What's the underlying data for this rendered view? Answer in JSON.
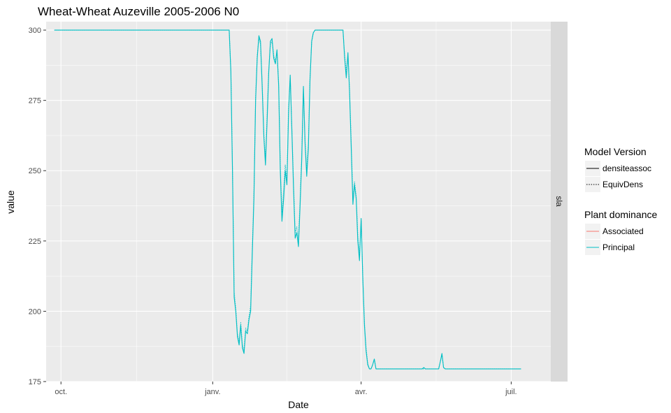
{
  "chart_data": {
    "type": "line",
    "title": "Wheat-Wheat Auzeville 2005-2006 N0",
    "xlabel": "Date",
    "ylabel": "value",
    "facet_label": "sla",
    "x_type": "date",
    "xlim": [
      "2005-09-22",
      "2006-07-25"
    ],
    "ylim": [
      175,
      303
    ],
    "x_ticks": [
      {
        "date": "2005-10-01",
        "label": "oct."
      },
      {
        "date": "2006-01-01",
        "label": "janv."
      },
      {
        "date": "2006-04-01",
        "label": "avr."
      },
      {
        "date": "2006-07-01",
        "label": "juil."
      }
    ],
    "y_ticks": [
      175,
      200,
      225,
      250,
      275,
      300
    ],
    "grid": true,
    "legend": {
      "placement": "right",
      "groups": [
        {
          "title": "Model Version",
          "items": [
            {
              "label": "densiteassoc",
              "linetype": "solid",
              "color": "#000000"
            },
            {
              "label": "EquivDens",
              "linetype": "dotted",
              "color": "#000000"
            }
          ]
        },
        {
          "title": "Plant dominance",
          "items": [
            {
              "label": "Associated",
              "linetype": "solid",
              "color": "#F8766D"
            },
            {
              "label": "Principal",
              "linetype": "solid",
              "color": "#00BFC4"
            }
          ]
        }
      ]
    },
    "series": [
      {
        "name": "Principal",
        "model_version": "densiteassoc",
        "color": "#00BFC4",
        "linetype": "solid",
        "points": [
          [
            "2005-09-27",
            300
          ],
          [
            "2005-10-15",
            300
          ],
          [
            "2005-11-15",
            300
          ],
          [
            "2005-12-15",
            300
          ],
          [
            "2006-01-10",
            300
          ],
          [
            "2006-01-11",
            300
          ],
          [
            "2006-01-12",
            285
          ],
          [
            "2006-01-13",
            250
          ],
          [
            "2006-01-14",
            205
          ],
          [
            "2006-01-15",
            200
          ],
          [
            "2006-01-16",
            191
          ],
          [
            "2006-01-17",
            188
          ],
          [
            "2006-01-18",
            195
          ],
          [
            "2006-01-19",
            187
          ],
          [
            "2006-01-20",
            185
          ],
          [
            "2006-01-21",
            193
          ],
          [
            "2006-01-22",
            192
          ],
          [
            "2006-01-23",
            197
          ],
          [
            "2006-01-24",
            200
          ],
          [
            "2006-01-25",
            220
          ],
          [
            "2006-01-26",
            240
          ],
          [
            "2006-01-27",
            275
          ],
          [
            "2006-01-28",
            290
          ],
          [
            "2006-01-29",
            298
          ],
          [
            "2006-01-30",
            296
          ],
          [
            "2006-01-31",
            280
          ],
          [
            "2006-02-01",
            262
          ],
          [
            "2006-02-02",
            252
          ],
          [
            "2006-02-03",
            268
          ],
          [
            "2006-02-04",
            285
          ],
          [
            "2006-02-05",
            296
          ],
          [
            "2006-02-06",
            297
          ],
          [
            "2006-02-07",
            290
          ],
          [
            "2006-02-08",
            288
          ],
          [
            "2006-02-09",
            293
          ],
          [
            "2006-02-10",
            280
          ],
          [
            "2006-02-11",
            250
          ],
          [
            "2006-02-12",
            232
          ],
          [
            "2006-02-13",
            240
          ],
          [
            "2006-02-14",
            250
          ],
          [
            "2006-02-15",
            245
          ],
          [
            "2006-02-16",
            270
          ],
          [
            "2006-02-17",
            284
          ],
          [
            "2006-02-18",
            264
          ],
          [
            "2006-02-19",
            244
          ],
          [
            "2006-02-20",
            226
          ],
          [
            "2006-02-21",
            228
          ],
          [
            "2006-02-22",
            223
          ],
          [
            "2006-02-23",
            238
          ],
          [
            "2006-02-24",
            254
          ],
          [
            "2006-02-25",
            280
          ],
          [
            "2006-02-26",
            260
          ],
          [
            "2006-02-27",
            248
          ],
          [
            "2006-02-28",
            258
          ],
          [
            "2006-03-01",
            282
          ],
          [
            "2006-03-02",
            296
          ],
          [
            "2006-03-03",
            299
          ],
          [
            "2006-03-04",
            300
          ],
          [
            "2006-03-10",
            300
          ],
          [
            "2006-03-15",
            300
          ],
          [
            "2006-03-20",
            300
          ],
          [
            "2006-03-21",
            300
          ],
          [
            "2006-03-22",
            290
          ],
          [
            "2006-03-23",
            283
          ],
          [
            "2006-03-24",
            292
          ],
          [
            "2006-03-25",
            278
          ],
          [
            "2006-03-26",
            258
          ],
          [
            "2006-03-27",
            238
          ],
          [
            "2006-03-28",
            245
          ],
          [
            "2006-03-29",
            240
          ],
          [
            "2006-03-30",
            225
          ],
          [
            "2006-03-31",
            218
          ],
          [
            "2006-04-01",
            233
          ],
          [
            "2006-04-02",
            212
          ],
          [
            "2006-04-03",
            195
          ],
          [
            "2006-04-04",
            186
          ],
          [
            "2006-04-05",
            181
          ],
          [
            "2006-04-06",
            179.5
          ],
          [
            "2006-04-07",
            179.5
          ],
          [
            "2006-04-08",
            181
          ],
          [
            "2006-04-09",
            183
          ],
          [
            "2006-04-10",
            179.5
          ],
          [
            "2006-04-20",
            179.5
          ],
          [
            "2006-05-01",
            179.5
          ],
          [
            "2006-05-08",
            179.5
          ],
          [
            "2006-05-09",
            180
          ],
          [
            "2006-05-10",
            179.5
          ],
          [
            "2006-05-18",
            179.5
          ],
          [
            "2006-05-19",
            182
          ],
          [
            "2006-05-20",
            185
          ],
          [
            "2006-05-21",
            180
          ],
          [
            "2006-05-22",
            179.5
          ],
          [
            "2006-06-10",
            179.5
          ],
          [
            "2006-07-01",
            179.5
          ],
          [
            "2006-07-07",
            179.5
          ]
        ]
      },
      {
        "name": "Principal",
        "model_version": "EquivDens",
        "color": "#00BFC4",
        "linetype": "dotted",
        "points": [
          [
            "2005-09-27",
            300
          ],
          [
            "2006-01-11",
            300
          ],
          [
            "2006-01-12",
            286
          ],
          [
            "2006-01-13",
            252
          ],
          [
            "2006-01-14",
            207
          ],
          [
            "2006-01-15",
            201
          ],
          [
            "2006-01-16",
            192
          ],
          [
            "2006-01-17",
            189
          ],
          [
            "2006-01-18",
            196
          ],
          [
            "2006-01-19",
            188
          ],
          [
            "2006-01-20",
            186
          ],
          [
            "2006-01-21",
            194
          ],
          [
            "2006-01-22",
            193
          ],
          [
            "2006-01-23",
            198
          ],
          [
            "2006-01-24",
            202
          ],
          [
            "2006-01-25",
            222
          ],
          [
            "2006-01-26",
            242
          ],
          [
            "2006-01-27",
            276
          ],
          [
            "2006-01-28",
            291
          ],
          [
            "2006-01-29",
            297
          ],
          [
            "2006-01-30",
            295
          ],
          [
            "2006-01-31",
            281
          ],
          [
            "2006-02-01",
            263
          ],
          [
            "2006-02-02",
            254
          ],
          [
            "2006-02-03",
            270
          ],
          [
            "2006-02-04",
            286
          ],
          [
            "2006-02-05",
            295
          ],
          [
            "2006-02-06",
            296
          ],
          [
            "2006-02-07",
            291
          ],
          [
            "2006-02-08",
            289
          ],
          [
            "2006-02-09",
            292
          ],
          [
            "2006-02-10",
            281
          ],
          [
            "2006-02-11",
            252
          ],
          [
            "2006-02-12",
            235
          ],
          [
            "2006-02-13",
            243
          ],
          [
            "2006-02-14",
            252
          ],
          [
            "2006-02-15",
            247
          ],
          [
            "2006-02-16",
            272
          ],
          [
            "2006-02-17",
            283
          ],
          [
            "2006-02-18",
            265
          ],
          [
            "2006-02-19",
            246
          ],
          [
            "2006-02-20",
            228
          ],
          [
            "2006-02-21",
            230
          ],
          [
            "2006-02-22",
            225
          ],
          [
            "2006-02-23",
            240
          ],
          [
            "2006-02-24",
            256
          ],
          [
            "2006-02-25",
            279
          ],
          [
            "2006-02-26",
            261
          ],
          [
            "2006-02-27",
            250
          ],
          [
            "2006-02-28",
            260
          ],
          [
            "2006-03-01",
            283
          ],
          [
            "2006-03-02",
            296
          ],
          [
            "2006-03-03",
            299
          ],
          [
            "2006-03-04",
            300
          ],
          [
            "2006-03-21",
            300
          ],
          [
            "2006-03-22",
            291
          ],
          [
            "2006-03-23",
            285
          ],
          [
            "2006-03-24",
            291
          ],
          [
            "2006-03-25",
            279
          ],
          [
            "2006-03-26",
            260
          ],
          [
            "2006-03-27",
            240
          ],
          [
            "2006-03-28",
            246
          ],
          [
            "2006-03-29",
            241
          ],
          [
            "2006-03-30",
            227
          ],
          [
            "2006-03-31",
            220
          ],
          [
            "2006-04-01",
            232
          ],
          [
            "2006-04-02",
            213
          ],
          [
            "2006-04-03",
            196
          ],
          [
            "2006-04-04",
            187
          ],
          [
            "2006-04-05",
            181.5
          ],
          [
            "2006-04-06",
            179.5
          ],
          [
            "2006-04-07",
            179.5
          ],
          [
            "2006-04-08",
            181
          ],
          [
            "2006-04-09",
            183
          ],
          [
            "2006-04-10",
            179.5
          ],
          [
            "2006-05-18",
            179.5
          ],
          [
            "2006-05-19",
            182
          ],
          [
            "2006-05-20",
            184.5
          ],
          [
            "2006-05-21",
            180
          ],
          [
            "2006-05-22",
            179.5
          ],
          [
            "2006-07-07",
            179.5
          ]
        ]
      }
    ]
  }
}
